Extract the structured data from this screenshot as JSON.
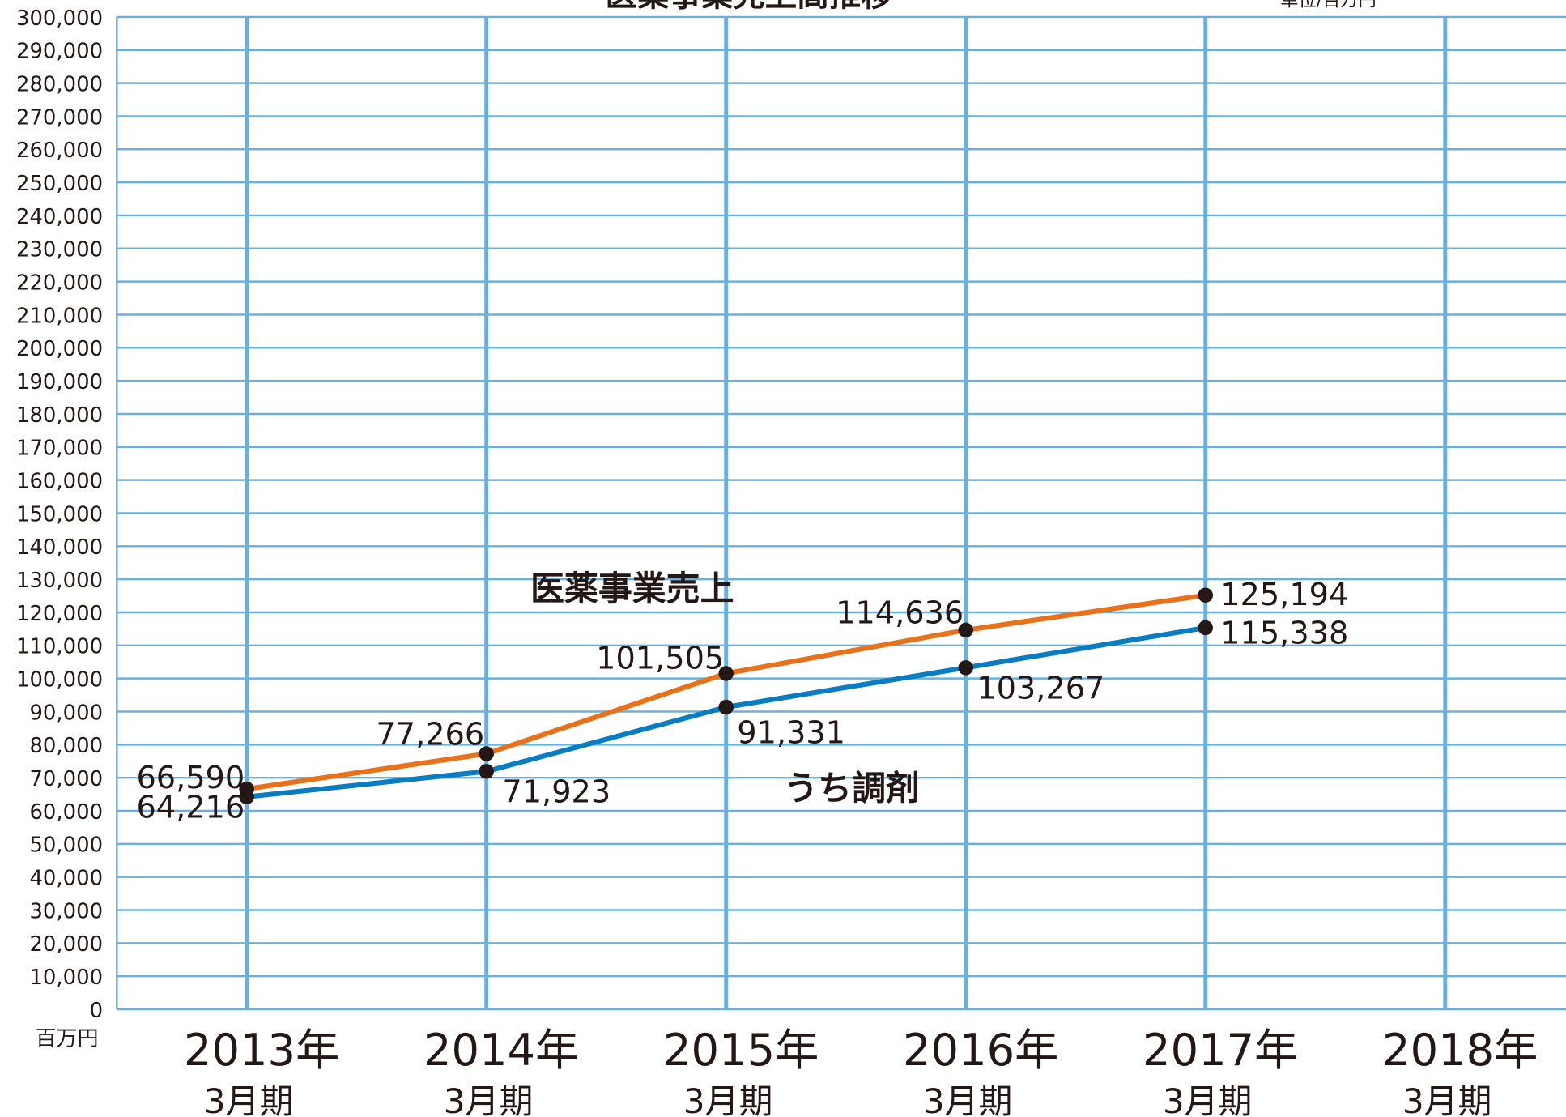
{
  "chart_data": {
    "type": "line",
    "title": "医薬事業売上高推移",
    "unit_label": "単位/百万円",
    "y_axis_label": "百万円",
    "categories": [
      "2013年\n3月期",
      "2014年\n3月期",
      "2015年\n3月期",
      "2016年\n3月期",
      "2017年\n3月期",
      "2018年\n3月期"
    ],
    "series": [
      {
        "name": "医薬事業売上",
        "color": "#e8711c",
        "values": [
          66590,
          77266,
          101505,
          114636,
          125194,
          null
        ],
        "value_labels": [
          "66,590",
          "77,266",
          "101,505",
          "114,636",
          "125,194",
          null
        ]
      },
      {
        "name": "うち調剤",
        "color": "#0a7cc1",
        "values": [
          64216,
          71923,
          91331,
          103267,
          115338,
          null
        ],
        "value_labels": [
          "64,216",
          "71,923",
          "91,331",
          "103,267",
          "115,338",
          null
        ]
      }
    ],
    "ylim": [
      0,
      300000
    ],
    "yticks": [
      0,
      {
        "value": 10000,
        "label": "10,000"
      },
      {
        "value": 20000,
        "label": "20,000"
      },
      {
        "value": 30000,
        "label": "30,000"
      },
      {
        "value": 40000,
        "label": "40,000"
      },
      {
        "value": 50000,
        "label": "50,000"
      },
      {
        "value": 60000,
        "label": "60,000"
      },
      {
        "value": 70000,
        "label": "70,000"
      },
      {
        "value": 80000,
        "label": "80,000"
      },
      {
        "value": 90000,
        "label": "90,000"
      },
      {
        "value": 100000,
        "label": "100,000"
      },
      {
        "value": 110000,
        "label": "110,000"
      },
      {
        "value": 120000,
        "label": "120,000"
      },
      {
        "value": 130000,
        "label": "130,000"
      },
      {
        "value": 140000,
        "label": "140,000"
      },
      {
        "value": 150000,
        "label": "150,000"
      },
      {
        "value": 160000,
        "label": "160,000"
      },
      {
        "value": 170000,
        "label": "170,000"
      },
      {
        "value": 180000,
        "label": "180,000"
      },
      {
        "value": 190000,
        "label": "190,000"
      },
      {
        "value": 200000,
        "label": "200,000"
      },
      {
        "value": 210000,
        "label": "210,000"
      },
      {
        "value": 220000,
        "label": "220,000"
      },
      {
        "value": 230000,
        "label": "230,000"
      },
      {
        "value": 240000,
        "label": "240,000"
      },
      {
        "value": 250000,
        "label": "250,000"
      },
      {
        "value": 260000,
        "label": "260,000"
      },
      {
        "value": 270000,
        "label": "270,000"
      },
      {
        "value": 280000,
        "label": "280,000"
      },
      {
        "value": 290000,
        "label": "290,000"
      },
      {
        "value": 300000,
        "label": "300,000"
      }
    ],
    "grid": true,
    "grid_color": "#6ab0da"
  }
}
